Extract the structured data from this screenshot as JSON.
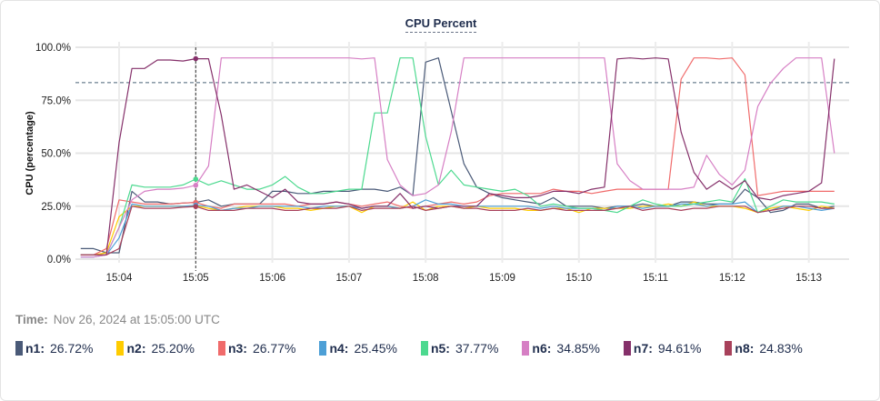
{
  "chart_data": {
    "type": "line",
    "title": "CPU Percent",
    "ylabel": "CPU (percentage)",
    "xlabel": "",
    "ylim": [
      0,
      100
    ],
    "yticks": [
      "0.0%",
      "25.0%",
      "50.0%",
      "75.0%",
      "100.0%"
    ],
    "xticks": [
      "15:04",
      "15:05",
      "15:06",
      "15:07",
      "15:08",
      "15:09",
      "15:10",
      "15:11",
      "15:12",
      "15:13"
    ],
    "x_start": "15:03:30",
    "x_step_seconds": 10,
    "threshold": 83.3,
    "hover_time": "15:05:00",
    "grid": true,
    "series": [
      {
        "name": "n1",
        "color": "#4a5a78",
        "values": [
          5,
          5,
          3,
          3,
          32,
          27,
          27,
          26,
          26.5,
          26.72,
          28,
          25,
          26,
          26,
          26,
          32,
          32,
          31,
          31,
          32,
          32,
          32,
          33,
          33,
          32,
          34,
          30,
          93,
          95,
          70,
          45,
          34,
          31,
          29,
          28,
          27,
          26,
          29,
          25,
          25,
          25,
          24,
          25,
          25,
          26,
          25,
          25,
          27,
          27,
          26,
          26,
          26,
          33,
          29,
          22,
          23,
          26,
          26,
          24,
          25
        ]
      },
      {
        "name": "n2",
        "color": "#ffcc00",
        "values": [
          2,
          2,
          3,
          20,
          25,
          25,
          25,
          25,
          25,
          25.2,
          24,
          23,
          24,
          25,
          25,
          25,
          24,
          24,
          23,
          24,
          25,
          25,
          22,
          25,
          25,
          24,
          27,
          23,
          25,
          25,
          24,
          25,
          24,
          24,
          24,
          23,
          23,
          24,
          24,
          22,
          24,
          24,
          24,
          24,
          25,
          25,
          26,
          25,
          27,
          25,
          25,
          25,
          24,
          22,
          24,
          25,
          24,
          23,
          25,
          24
        ]
      },
      {
        "name": "n3",
        "color": "#f06b6b",
        "values": [
          2,
          2,
          5,
          28,
          27,
          26,
          26,
          26,
          26.5,
          26.77,
          25,
          24,
          26,
          26,
          26,
          26,
          26,
          25,
          26,
          26,
          27,
          26,
          25,
          26,
          27,
          25,
          24,
          25,
          26,
          27,
          26,
          27,
          30,
          31,
          31,
          31,
          31,
          33,
          32,
          32,
          31,
          32,
          33,
          33,
          33,
          33,
          33,
          85,
          95,
          95,
          94.5,
          95,
          87,
          30,
          31,
          32,
          32,
          32,
          32,
          32
        ]
      },
      {
        "name": "n4",
        "color": "#4d9fd6",
        "values": [
          1,
          1,
          2,
          10,
          26,
          25,
          25,
          25,
          25,
          25.45,
          25,
          23,
          24,
          24,
          25,
          25,
          25,
          25,
          24,
          25,
          25,
          25,
          24,
          25,
          25,
          24,
          25,
          28,
          26,
          26,
          25,
          25,
          25,
          25,
          25,
          25,
          24,
          25,
          24,
          24,
          24,
          23,
          25,
          25,
          24,
          25,
          25,
          26,
          26,
          25,
          26,
          26,
          27,
          22,
          23,
          25,
          25,
          24,
          23,
          24
        ]
      },
      {
        "name": "n5",
        "color": "#4cd98f",
        "values": [
          2,
          2,
          2,
          15,
          35,
          34,
          34,
          34,
          35,
          37.77,
          35,
          37,
          35,
          33,
          33,
          35,
          39,
          34,
          31,
          31,
          32,
          33,
          33,
          69,
          69,
          95,
          95,
          58,
          35,
          42,
          35,
          34,
          33,
          32,
          33,
          30,
          25,
          26,
          25,
          24,
          24,
          23,
          22,
          25,
          28,
          26,
          25,
          25,
          26,
          27,
          28,
          27,
          38,
          22,
          25,
          28,
          27,
          27,
          27,
          26
        ]
      },
      {
        "name": "n6",
        "color": "#d67fc4",
        "values": [
          1,
          1,
          2,
          15,
          28,
          32,
          33,
          33,
          33.5,
          34.85,
          44,
          95,
          95,
          95,
          95,
          95,
          95,
          95,
          95,
          95,
          95,
          95,
          94.5,
          95,
          47,
          35,
          30,
          31,
          35,
          60,
          95,
          95,
          95,
          95,
          95,
          95,
          95,
          95,
          95,
          95,
          95,
          95,
          45,
          37,
          33,
          33,
          33,
          33,
          34,
          49,
          40,
          35,
          42,
          72,
          83,
          90,
          95,
          95,
          95,
          50
        ]
      },
      {
        "name": "n7",
        "color": "#85306a",
        "values": [
          2,
          2,
          2,
          55,
          90,
          90,
          94,
          94,
          93.5,
          94.61,
          94.6,
          68,
          33,
          35,
          32,
          29,
          33,
          27,
          26,
          26,
          27,
          26,
          24,
          25,
          25,
          31,
          24,
          25,
          24,
          25,
          25,
          25,
          31,
          30,
          29,
          29,
          30,
          32,
          32,
          31,
          33,
          34,
          94.5,
          95,
          94.5,
          95,
          94.5,
          60,
          41,
          33,
          37,
          33,
          37,
          29,
          28,
          30,
          31,
          32,
          36,
          94.61
        ]
      },
      {
        "name": "n8",
        "color": "#a8415b",
        "values": [
          2,
          2,
          2,
          5,
          25,
          24,
          24,
          24,
          24.5,
          24.83,
          23,
          23,
          23,
          24,
          24,
          24,
          23,
          23,
          24,
          24,
          24,
          25,
          23,
          24,
          24,
          24,
          25,
          23,
          24,
          25,
          24,
          24,
          23,
          23,
          23,
          24,
          23,
          24,
          23,
          23,
          23,
          23,
          24,
          25,
          23,
          24,
          24,
          23,
          24,
          24,
          25,
          25,
          25,
          22,
          23,
          24,
          25,
          25,
          24,
          24
        ]
      }
    ]
  },
  "tooltip": {
    "time_label": "Time:",
    "time_value": "Nov 26, 2024 at 15:05:00 UTC",
    "entries": [
      {
        "name": "n1:",
        "value": "26.72%",
        "color": "#4a5a78"
      },
      {
        "name": "n2:",
        "value": "25.20%",
        "color": "#ffcc00"
      },
      {
        "name": "n3:",
        "value": "26.77%",
        "color": "#f06b6b"
      },
      {
        "name": "n4:",
        "value": "25.45%",
        "color": "#4d9fd6"
      },
      {
        "name": "n5:",
        "value": "37.77%",
        "color": "#4cd98f"
      },
      {
        "name": "n6:",
        "value": "34.85%",
        "color": "#d67fc4"
      },
      {
        "name": "n7:",
        "value": "94.61%",
        "color": "#85306a"
      },
      {
        "name": "n8:",
        "value": "24.83%",
        "color": "#a8415b"
      }
    ]
  }
}
